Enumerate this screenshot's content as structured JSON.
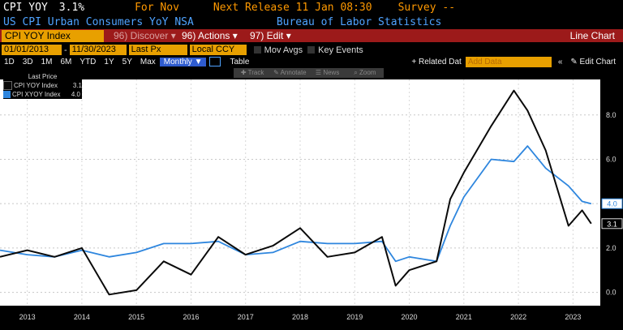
{
  "header": {
    "ticker": "CPI YOY",
    "last_value": "3.1%",
    "for_label": "For Nov",
    "next_release": "Next Release 11 Jan 08:30",
    "survey": "Survey --",
    "description": "US CPI Urban Consumers YoY NSA",
    "source": "Bureau of Labor Statistics"
  },
  "toolbar": {
    "security": "CPI YOY Index",
    "discover": "96) Discover ▾",
    "actions": "96) Actions ▾",
    "edit": "97) Edit ▾",
    "chart_type": "Line Chart"
  },
  "controls": {
    "start_date": "01/01/2013",
    "end_date": "11/30/2023",
    "price": "Last Px",
    "currency": "Local CCY",
    "mov_avgs": "Mov Avgs",
    "key_events": "Key Events"
  },
  "periods": [
    "1D",
    "3D",
    "1M",
    "6M",
    "YTD",
    "1Y",
    "5Y",
    "Max"
  ],
  "frequency": "Monthly ▼",
  "table_label": "Table",
  "related_data": "+ Related Dat",
  "add_data_placeholder": "Add Data",
  "edit_chart": "✎ Edit Chart",
  "annotation_tools": [
    "✚ Track",
    "✎ Annotate",
    "☰ News",
    "⌕ Zoom"
  ],
  "legend_title": "Last Price",
  "colors": {
    "cpi": "#0a0a0a",
    "cpix": "#2e86de",
    "background": "#ffffff",
    "accent": "#e8a000"
  },
  "chart_data": {
    "type": "line",
    "x": [
      "2013-01",
      "2013-07",
      "2014-01",
      "2014-07",
      "2015-01",
      "2015-07",
      "2016-01",
      "2016-07",
      "2017-01",
      "2017-07",
      "2018-01",
      "2018-07",
      "2019-01",
      "2019-07",
      "2020-01",
      "2020-04",
      "2020-07",
      "2021-01",
      "2021-04",
      "2021-07",
      "2022-01",
      "2022-06",
      "2022-09",
      "2023-01",
      "2023-06",
      "2023-09",
      "2023-11"
    ],
    "series": [
      {
        "name": "CPI YOY Index",
        "last": "3.1",
        "values": [
          1.6,
          1.9,
          1.6,
          2.0,
          -0.1,
          0.1,
          1.4,
          0.8,
          2.5,
          1.7,
          2.1,
          2.9,
          1.6,
          1.8,
          2.5,
          0.3,
          1.0,
          1.4,
          4.2,
          5.4,
          7.5,
          9.1,
          8.2,
          6.4,
          3.0,
          3.7,
          3.1
        ]
      },
      {
        "name": "CPI XYOY Index",
        "last": "4.0",
        "values": [
          1.9,
          1.7,
          1.6,
          1.9,
          1.6,
          1.8,
          2.2,
          2.2,
          2.3,
          1.7,
          1.8,
          2.3,
          2.2,
          2.2,
          2.3,
          1.4,
          1.6,
          1.4,
          3.0,
          4.3,
          6.0,
          5.9,
          6.6,
          5.6,
          4.8,
          4.1,
          4.0
        ]
      }
    ],
    "xlabels": [
      "2013",
      "2014",
      "2015",
      "2016",
      "2017",
      "2018",
      "2019",
      "2020",
      "2021",
      "2022",
      "2023"
    ],
    "yticks": [
      "0.0",
      "2.0",
      "4.0",
      "6.0",
      "8.0"
    ],
    "ylim": [
      -0.6,
      9.6
    ],
    "grid": true
  }
}
